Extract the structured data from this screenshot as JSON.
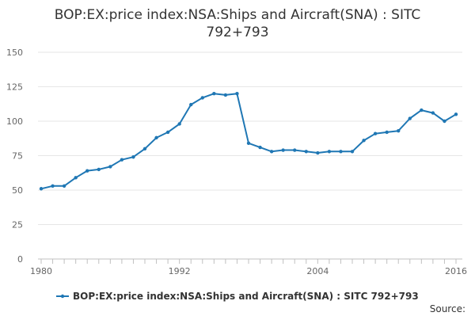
{
  "chart_data": {
    "type": "line",
    "title": "BOP:EX:price index:NSA:Ships and Aircraft(SNA) : SITC 792+793",
    "title_lines": [
      "BOP:EX:price index:NSA:Ships and Aircraft(SNA) : SITC",
      "792+793"
    ],
    "xlabel": "",
    "ylabel": "",
    "x_tick_labels": [
      "1980",
      "1992",
      "2004",
      "2016"
    ],
    "y_tick_labels": [
      "0",
      "25",
      "50",
      "75",
      "100",
      "125",
      "150"
    ],
    "xlim": [
      1980,
      2016
    ],
    "ylim": [
      0,
      150
    ],
    "grid": true,
    "legend_position": "bottom-center",
    "series": [
      {
        "name": "BOP:EX:price index:NSA:Ships and Aircraft(SNA) : SITC 792+793",
        "color": "#1f77b4",
        "x": [
          1980,
          1981,
          1982,
          1983,
          1984,
          1985,
          1986,
          1987,
          1988,
          1989,
          1990,
          1991,
          1992,
          1993,
          1994,
          1995,
          1996,
          1997,
          1998,
          1999,
          2000,
          2001,
          2002,
          2003,
          2004,
          2005,
          2006,
          2007,
          2008,
          2009,
          2010,
          2011,
          2012,
          2013,
          2014,
          2015,
          2016
        ],
        "values": [
          51,
          53,
          53,
          59,
          64,
          65,
          67,
          72,
          74,
          80,
          88,
          92,
          98,
          112,
          117,
          120,
          119,
          120,
          84,
          81,
          78,
          79,
          79,
          78,
          77,
          78,
          78,
          78,
          86,
          91,
          92,
          93,
          102,
          108,
          106,
          100,
          105
        ]
      }
    ],
    "source_label": "Source:"
  }
}
